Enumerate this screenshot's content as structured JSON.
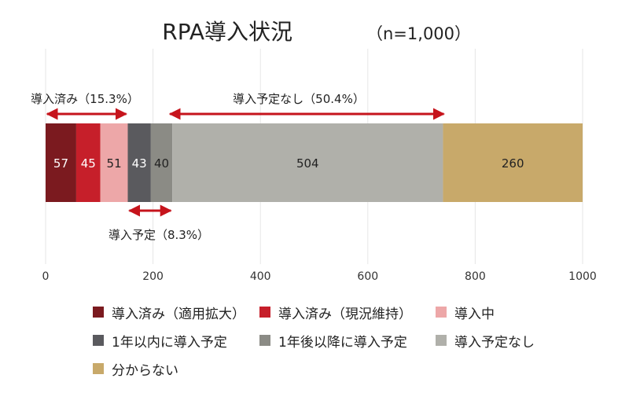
{
  "chart_data": {
    "type": "bar",
    "orientation": "horizontal-stacked",
    "title": "RPA導入状況",
    "subtitle": "（n=1,000）",
    "xlim": [
      0,
      1000
    ],
    "x_ticks": [
      0,
      200,
      400,
      600,
      800,
      1000
    ],
    "grid": true,
    "legend_position": "bottom",
    "series": [
      {
        "name": "導入済み（適用拡大）",
        "value": 57,
        "color": "#7b1a1f"
      },
      {
        "name": "導入済み（現況維持）",
        "value": 45,
        "color": "#c61f2a"
      },
      {
        "name": "導入中",
        "value": 51,
        "color": "#eda7a8"
      },
      {
        "name": "1年以内に導入予定",
        "value": 43,
        "color": "#5a5a5e"
      },
      {
        "name": "1年後以降に導入予定",
        "value": 40,
        "color": "#8b8b85"
      },
      {
        "name": "導入予定なし",
        "value": 504,
        "color": "#b0b0aa"
      },
      {
        "name": "分からない",
        "value": 260,
        "color": "#c8a96a"
      }
    ],
    "annotations": [
      {
        "label": "導入済み（15.3%）",
        "from": 0,
        "to": 153,
        "position": "above"
      },
      {
        "label": "導入予定なし（50.4%）",
        "from": 236,
        "to": 740,
        "position": "above"
      },
      {
        "label": "導入予定（8.3%）",
        "from": 153,
        "to": 236,
        "position": "below"
      }
    ]
  },
  "colors": {
    "arrow": "#c6141c",
    "grid": "#e6e6e6",
    "label_light": "#ffffff",
    "label_dark": "#222222"
  }
}
